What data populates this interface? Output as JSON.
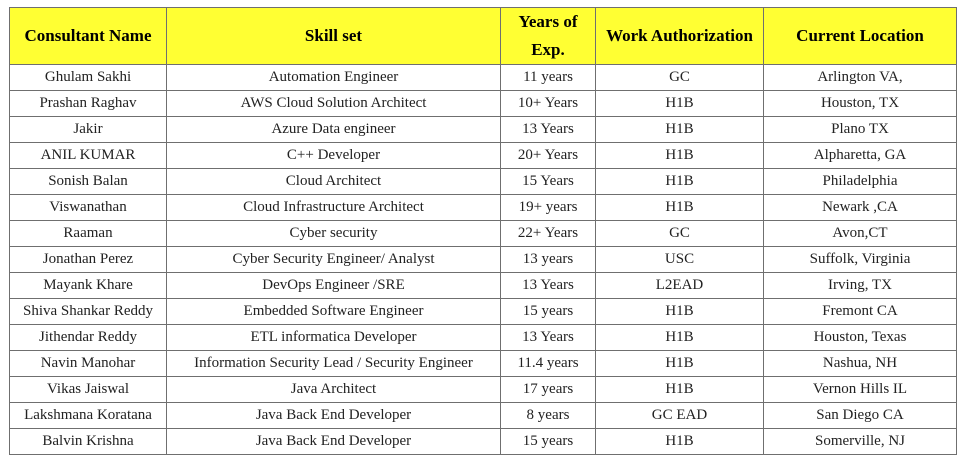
{
  "table": {
    "headers": [
      "Consultant Name",
      "Skill set",
      "Years of Exp.",
      "Work Authorization",
      "Current Location"
    ],
    "rows": [
      [
        "Ghulam Sakhi",
        "Automation Engineer",
        "11 years",
        "GC",
        "Arlington VA,"
      ],
      [
        "Prashan Raghav",
        "AWS Cloud Solution Architect",
        "10+ Years",
        "H1B",
        "Houston, TX"
      ],
      [
        "Jakir",
        "Azure Data engineer",
        "13 Years",
        "H1B",
        "Plano TX"
      ],
      [
        "ANIL KUMAR",
        "C++ Developer",
        "20+ Years",
        "H1B",
        "Alpharetta, GA"
      ],
      [
        "Sonish Balan",
        "Cloud Architect",
        "15 Years",
        "H1B",
        "Philadelphia"
      ],
      [
        "Viswanathan",
        "Cloud Infrastructure Architect",
        "19+ years",
        "H1B",
        "Newark ,CA"
      ],
      [
        "Raaman",
        "Cyber security",
        "22+ Years",
        "GC",
        "Avon,CT"
      ],
      [
        "Jonathan Perez",
        "Cyber Security Engineer/ Analyst",
        "13 years",
        "USC",
        "Suffolk, Virginia"
      ],
      [
        "Mayank Khare",
        "DevOps Engineer /SRE",
        "13 Years",
        "L2EAD",
        "Irving, TX"
      ],
      [
        "Shiva Shankar Reddy",
        "Embedded Software Engineer",
        "15 years",
        "H1B",
        "Fremont CA"
      ],
      [
        "Jithendar Reddy",
        "ETL informatica Developer",
        "13 Years",
        "H1B",
        "Houston, Texas"
      ],
      [
        "Navin Manohar",
        "Information Security Lead / Security Engineer",
        "11.4 years",
        "H1B",
        "Nashua, NH"
      ],
      [
        "Vikas Jaiswal",
        "Java Architect",
        "17 years",
        "H1B",
        "Vernon Hills IL"
      ],
      [
        "Lakshmana Koratana",
        "Java Back End Developer",
        "8 years",
        "GC EAD",
        "San Diego CA"
      ],
      [
        "Balvin Krishna",
        "Java Back End Developer",
        "15 years",
        "H1B",
        "Somerville, NJ"
      ]
    ]
  }
}
